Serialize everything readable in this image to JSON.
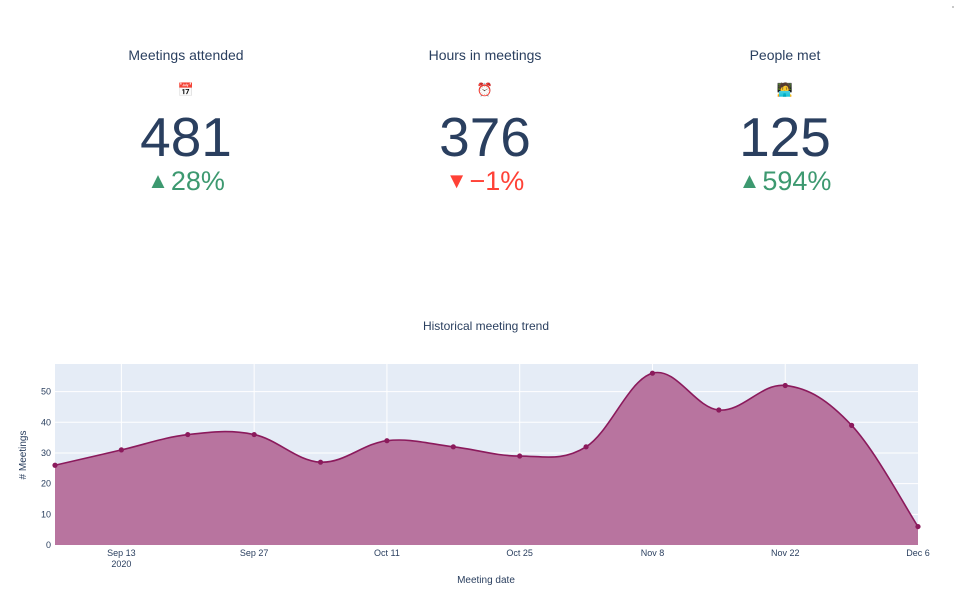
{
  "kpis": [
    {
      "title": "Meetings attended",
      "icon": "📅",
      "icon_name": "calendar-icon",
      "value": "481",
      "delta_arrow": "▲",
      "delta": "28%",
      "direction": "up"
    },
    {
      "title": "Hours in meetings",
      "icon": "⏰",
      "icon_name": "alarm-clock-icon",
      "value": "376",
      "delta_arrow": "▼",
      "delta": "−1%",
      "direction": "down"
    },
    {
      "title": "People met",
      "icon": "🧑‍💻",
      "icon_name": "person-at-laptop-icon",
      "value": "125",
      "delta_arrow": "▲",
      "delta": "594%",
      "direction": "up"
    }
  ],
  "colors": {
    "text": "#2a3f5f",
    "increasing": "#3d9970",
    "decreasing": "#ff4136",
    "series_line": "#8b1a5c",
    "series_fill": "#b8749f",
    "plot_bg": "#e5ecf6",
    "grid": "#ffffff"
  },
  "chart_data": {
    "type": "area",
    "title": "Historical meeting trend",
    "xlabel": "Meeting date",
    "ylabel": "# Meetings",
    "x": [
      "2020-09-06",
      "2020-09-13",
      "2020-09-20",
      "2020-09-27",
      "2020-10-04",
      "2020-10-11",
      "2020-10-18",
      "2020-10-25",
      "2020-11-01",
      "2020-11-08",
      "2020-11-15",
      "2020-11-22",
      "2020-11-29",
      "2020-12-06"
    ],
    "values": [
      26,
      31,
      36,
      36,
      27,
      34,
      32,
      29,
      32,
      56,
      44,
      52,
      39,
      6
    ],
    "x_ticks": [
      {
        "date": "2020-09-13",
        "label": "Sep 13",
        "sublabel": "2020"
      },
      {
        "date": "2020-09-27",
        "label": "Sep 27",
        "sublabel": ""
      },
      {
        "date": "2020-10-11",
        "label": "Oct 11",
        "sublabel": ""
      },
      {
        "date": "2020-10-25",
        "label": "Oct 25",
        "sublabel": ""
      },
      {
        "date": "2020-11-08",
        "label": "Nov 8",
        "sublabel": ""
      },
      {
        "date": "2020-11-22",
        "label": "Nov 22",
        "sublabel": ""
      },
      {
        "date": "2020-12-06",
        "label": "Dec 6",
        "sublabel": ""
      }
    ],
    "y_ticks": [
      0,
      10,
      20,
      30,
      40,
      50
    ],
    "ylim": [
      0,
      59
    ],
    "grid": true,
    "line_shape": "spline",
    "markers": true
  }
}
